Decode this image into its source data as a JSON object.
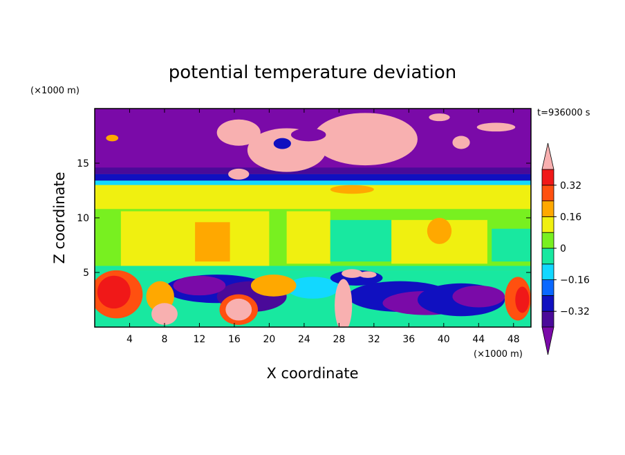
{
  "chart_data": {
    "type": "heatmap",
    "title": "potential temperature deviation",
    "xlabel": "X coordinate",
    "ylabel": "Z coordinate",
    "x_unit": "(×1000 m)",
    "y_unit": "(×1000 m)",
    "time_label": "t=936000 s",
    "xlim": [
      0,
      50
    ],
    "ylim": [
      0,
      20
    ],
    "x_ticks": [
      4,
      8,
      12,
      16,
      20,
      24,
      28,
      32,
      36,
      40,
      44,
      48
    ],
    "y_ticks": [
      5,
      10,
      15
    ],
    "colorbar": {
      "levels": [
        -0.4,
        -0.32,
        -0.24,
        -0.16,
        -0.08,
        0,
        0.08,
        0.16,
        0.24,
        0.32,
        0.4
      ],
      "tick_values": [
        0.32,
        0.16,
        0,
        -0.16,
        -0.32
      ],
      "tick_labels": [
        "0.32",
        "0.16",
        "0",
        "−0.16",
        "−0.32"
      ],
      "colors": {
        "below_min": "#7a0aa8",
        "bands": [
          "#4a0a99",
          "#1010c0",
          "#0a68ff",
          "#12d8ff",
          "#18e8a0",
          "#78f020",
          "#f0f010",
          "#ffa800",
          "#ff5010",
          "#f01818"
        ],
        "above_max": "#f8b0b0"
      }
    }
  }
}
